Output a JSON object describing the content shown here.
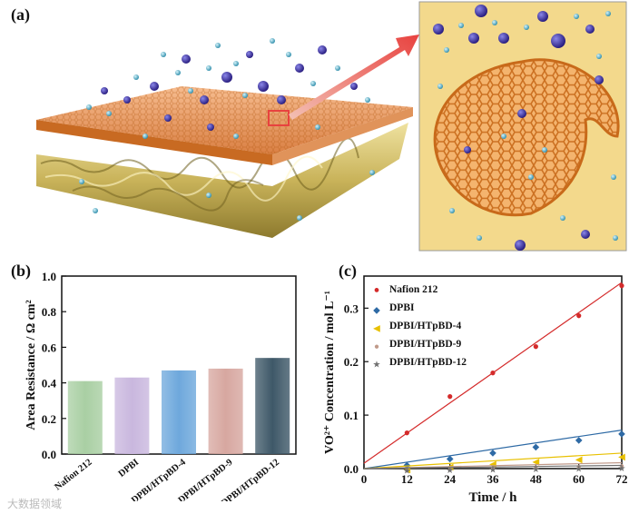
{
  "labels": {
    "a": "(a)",
    "b": "(b)",
    "c": "(c)"
  },
  "watermark": "大数据领域",
  "colors": {
    "membrane": "#d9873a",
    "substrate": "#c8b25a",
    "ion_large": "#3a2e9a",
    "ion_small": "#3aa6c8",
    "inset_bg": "#f2d88d",
    "arrow": "#e8423f"
  },
  "chart_data": [
    {
      "type": "bar",
      "title": "",
      "xlabel": "",
      "ylabel": "Area Resistance / Ω cm²",
      "ylim": [
        0,
        1.0
      ],
      "yticks": [
        "0.0",
        "0.2",
        "0.4",
        "0.6",
        "0.8",
        "1.0"
      ],
      "categories": [
        "Nafion 212",
        "DPBI",
        "DPBI/HTpBD-4",
        "DPBI/HTpBD-9",
        "DPBI/HTpBD-12"
      ],
      "values": [
        0.41,
        0.43,
        0.47,
        0.48,
        0.54
      ],
      "colors": [
        "#a9cfa3",
        "#c9b7de",
        "#6ea8dc",
        "#d7a7a0",
        "#3e5868"
      ]
    },
    {
      "type": "scatter",
      "title": "",
      "xlabel": "Time / h",
      "ylabel": "VO²⁺ Concentration / mol L⁻¹",
      "xlim": [
        0,
        72
      ],
      "ylim": [
        0,
        0.36
      ],
      "xticks": [
        "0",
        "12",
        "24",
        "36",
        "48",
        "60",
        "72"
      ],
      "yticks": [
        "0.0",
        "0.1",
        "0.2",
        "0.3"
      ],
      "x": [
        12,
        24,
        36,
        48,
        60,
        72
      ],
      "series": [
        {
          "name": "Nafion 212",
          "marker": "•",
          "color": "#d42a2a",
          "values": [
            0.07,
            0.138,
            0.182,
            0.231,
            0.289,
            0.345
          ],
          "fit": [
            0.01,
            0.348
          ]
        },
        {
          "name": "DPBI",
          "marker": "◆",
          "color": "#2e6aa5",
          "values": [
            0.012,
            0.024,
            0.035,
            0.046,
            0.059,
            0.071
          ],
          "fit": [
            0.0,
            0.072
          ]
        },
        {
          "name": "DPBI/HTpBD-4",
          "marker": "◀",
          "color": "#e8c000",
          "values": [
            0.004,
            0.009,
            0.014,
            0.018,
            0.023,
            0.028
          ],
          "fit": [
            0.0,
            0.029
          ]
        },
        {
          "name": "DPBI/HTpBD-9",
          "marker": "●",
          "color": "#c09a8a",
          "values": [
            0.002,
            0.004,
            0.006,
            0.008,
            0.009,
            0.011
          ],
          "fit": [
            0.0,
            0.011
          ]
        },
        {
          "name": "DPBI/HTpBD-12",
          "marker": "★",
          "color": "#707070",
          "values": [
            0.001,
            0.002,
            0.003,
            0.004,
            0.005,
            0.006
          ],
          "fit": [
            0.0,
            0.006
          ]
        }
      ]
    }
  ]
}
